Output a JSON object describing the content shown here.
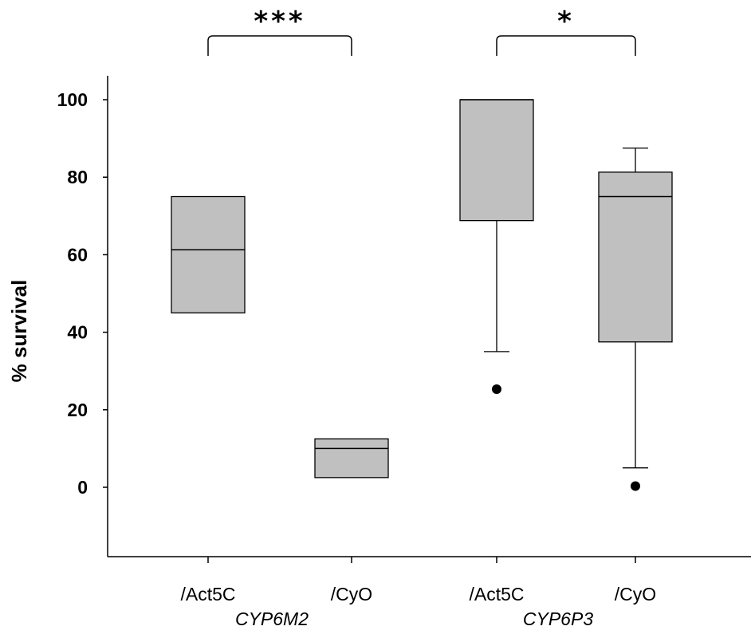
{
  "chart_data": {
    "type": "box",
    "ylabel": "% survival",
    "ylim": [
      -18,
      104
    ],
    "yticks": [
      0,
      20,
      40,
      60,
      80,
      100
    ],
    "grid": false,
    "categories": [
      "/Act5C",
      "/CyO",
      "/Act5C",
      "/CyO"
    ],
    "groups": [
      {
        "label": "CYP6M2",
        "categories": [
          0,
          1
        ]
      },
      {
        "label": "CYP6P3",
        "categories": [
          2,
          3
        ]
      }
    ],
    "boxes": [
      {
        "category": "/Act5C",
        "group": "CYP6M2",
        "q1": 45,
        "median": 61.3,
        "q3": 75,
        "whisker_low": null,
        "whisker_high": null,
        "outliers": []
      },
      {
        "category": "/CyO",
        "group": "CYP6M2",
        "q1": 2.5,
        "median": 10,
        "q3": 12.5,
        "whisker_low": null,
        "whisker_high": null,
        "outliers": []
      },
      {
        "category": "/Act5C",
        "group": "CYP6P3",
        "q1": 68.8,
        "median": 100,
        "q3": 100,
        "whisker_low": 35,
        "whisker_high": null,
        "outliers": [
          25.3
        ]
      },
      {
        "category": "/CyO",
        "group": "CYP6P3",
        "q1": 37.5,
        "median": 75,
        "q3": 81.3,
        "whisker_low": 5,
        "whisker_high": 87.5,
        "outliers": [
          0.3
        ]
      }
    ],
    "significance": [
      {
        "from": 0,
        "to": 1,
        "label": "***"
      },
      {
        "from": 2,
        "to": 3,
        "label": "*"
      }
    ],
    "box_fill": "#c0c0c0",
    "line_color": "#000000"
  }
}
